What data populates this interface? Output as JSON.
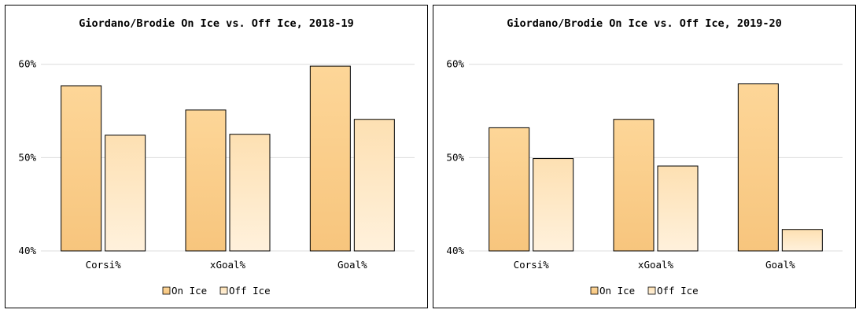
{
  "colors": {
    "on_ice_top": "#fdd698",
    "on_ice_bottom": "#f7c57d",
    "off_ice_top": "#fde0b2",
    "off_ice_bottom": "#fff1dc",
    "grid": "#dcdcdc"
  },
  "chart_data": [
    {
      "type": "bar",
      "title": "Giordano/Brodie On Ice vs. Off Ice, 2018-19",
      "categories": [
        "Corsi%",
        "xGoal%",
        "Goal%"
      ],
      "series": [
        {
          "name": "On Ice",
          "values": [
            57.7,
            55.1,
            59.8
          ]
        },
        {
          "name": "Off Ice",
          "values": [
            52.4,
            52.5,
            54.1
          ]
        }
      ],
      "yticks": [
        "40%",
        "50%",
        "60%"
      ],
      "ylim": [
        40,
        62
      ],
      "grid": true,
      "legend": "bottom"
    },
    {
      "type": "bar",
      "title": "Giordano/Brodie On Ice vs. Off Ice, 2019-20",
      "categories": [
        "Corsi%",
        "xGoal%",
        "Goal%"
      ],
      "series": [
        {
          "name": "On Ice",
          "values": [
            53.2,
            54.1,
            57.9
          ]
        },
        {
          "name": "Off Ice",
          "values": [
            49.9,
            49.1,
            42.3
          ]
        }
      ],
      "yticks": [
        "40%",
        "50%",
        "60%"
      ],
      "ylim": [
        40,
        62
      ],
      "grid": true,
      "legend": "bottom"
    }
  ]
}
